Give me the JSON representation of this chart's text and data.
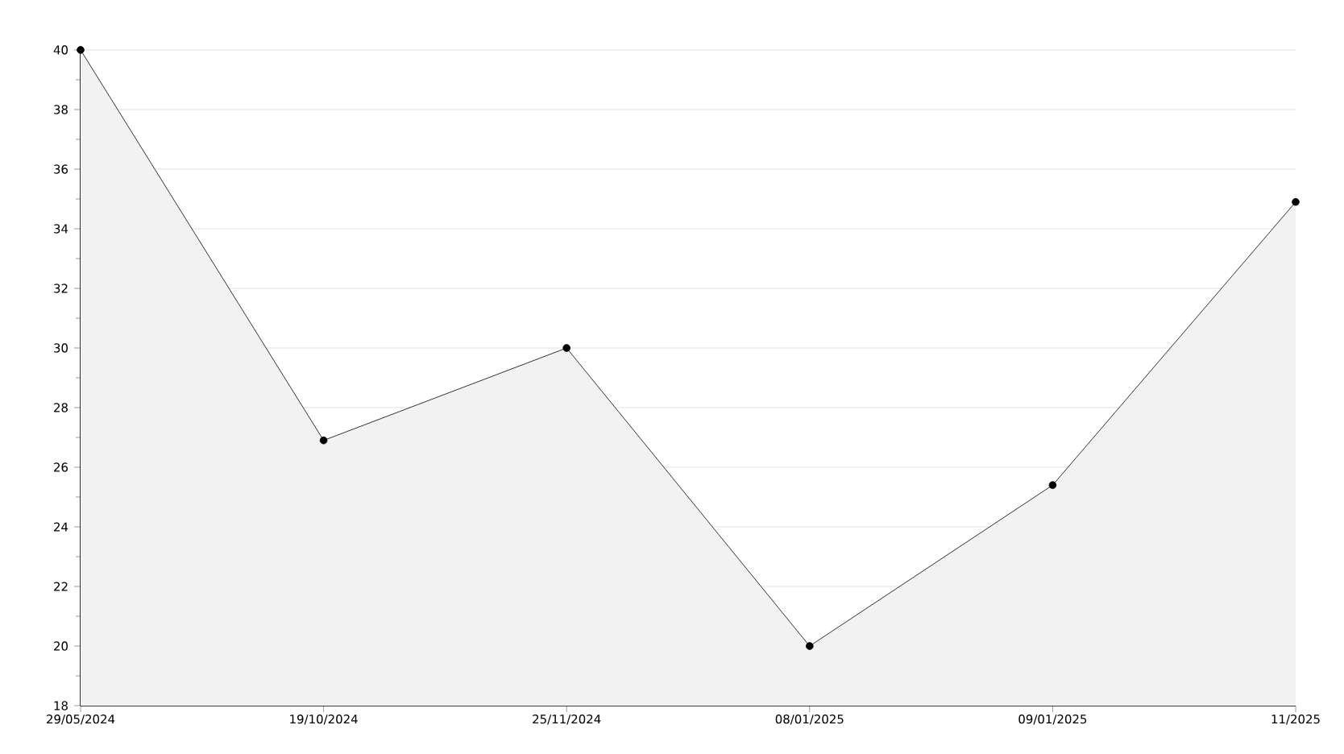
{
  "chart_data": {
    "type": "area",
    "categories": [
      "29/05/2024",
      "19/10/2024",
      "25/11/2024",
      "08/01/2025",
      "09/01/2025",
      "11/2025"
    ],
    "series": [
      {
        "color": "#000000",
        "values": [
          40,
          26.9,
          30,
          20,
          25.4,
          34.9
        ]
      }
    ],
    "ylim": [
      18,
      40
    ],
    "yticks": [
      18,
      20,
      22,
      24,
      26,
      28,
      30,
      32,
      34,
      36,
      38,
      40
    ],
    "grid": "y",
    "marker": "circle",
    "line_style": "solid"
  }
}
